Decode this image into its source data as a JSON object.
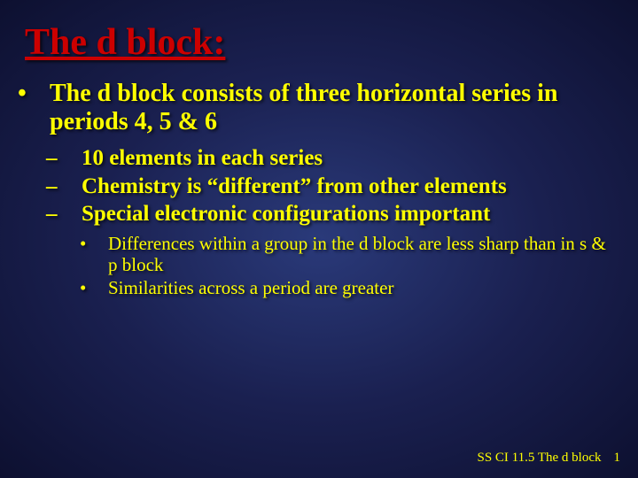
{
  "title": "The d block:",
  "bullets": {
    "l1": "The d block consists of three horizontal series in periods 4, 5 & 6",
    "l2a": "10 elements in each series",
    "l2b": "Chemistry is “different” from other elements",
    "l2c": "Special electronic configurations important",
    "l3a": "Differences within a group in the d block are less sharp than in s & p block",
    "l3b": "Similarities across a period are greater"
  },
  "footer": {
    "text": "SS CI 11.5 The d block",
    "page": "1"
  },
  "colors": {
    "title": "#cc0000",
    "text": "#ffff00",
    "bg_center": "#2a3a7a",
    "bg_mid": "#1a2050",
    "bg_edge": "#0d1030"
  }
}
